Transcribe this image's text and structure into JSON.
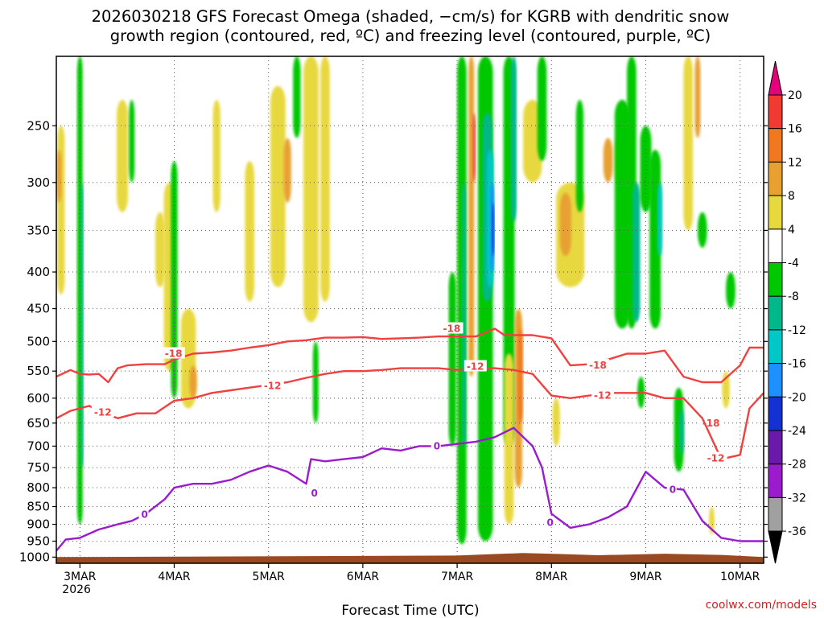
{
  "header": {
    "title_line1": "2026030218 GFS Forecast Omega (shaded, −cm/s) for KGRB with dendritic snow",
    "title_line2": "growth region (contoured, red, ºC) and freezing level (contoured, purple, ºC)"
  },
  "credit": "coolwx.com/models",
  "chart_data": {
    "type": "heatmap",
    "title": "2026030218 GFS Forecast Omega (shaded, −cm/s) for KGRB with dendritic snow growth region (contoured, red, ºC) and freezing level (contoured, purple, ºC)",
    "xlabel": "Forecast Time (UTC)",
    "ylabel": "",
    "x_ticks": [
      {
        "value": 0,
        "label": "3MAR",
        "sub": "2026"
      },
      {
        "value": 1,
        "label": "4MAR",
        "sub": ""
      },
      {
        "value": 2,
        "label": "5MAR",
        "sub": ""
      },
      {
        "value": 3,
        "label": "6MAR",
        "sub": ""
      },
      {
        "value": 4,
        "label": "7MAR",
        "sub": ""
      },
      {
        "value": 5,
        "label": "8MAR",
        "sub": ""
      },
      {
        "value": 6,
        "label": "9MAR",
        "sub": ""
      },
      {
        "value": 7,
        "label": "10MAR",
        "sub": ""
      }
    ],
    "xlim": [
      -0.25,
      7.25
    ],
    "y_ticks": [
      250,
      300,
      350,
      400,
      450,
      500,
      550,
      600,
      650,
      700,
      750,
      800,
      850,
      900,
      950,
      1000
    ],
    "y_scale": "log-pressure",
    "ylim": [
      200,
      1020
    ],
    "grid": true,
    "colorbar": {
      "ticks": [
        "20",
        "16",
        "12",
        "8",
        "4",
        "-4",
        "-8",
        "-12",
        "-16",
        "-20",
        "-24",
        "-28",
        "-32",
        "-36"
      ],
      "colors": {
        "gt20": "#e6007a",
        "16_20": "#f03c30",
        "12_16": "#f07820",
        "8_12": "#e8a030",
        "4_8": "#e8d840",
        "neutral": "#ffffff",
        "m4_m8": "#00c800",
        "m8_m12": "#00b88a",
        "m12_m16": "#00c8c8",
        "m16_m20": "#1e90ff",
        "m20_m24": "#1432d2",
        "m24_m28": "#6a1aa8",
        "m28_m32": "#9b1ccc",
        "m32_m36": "#a0a0a0",
        "lt36": "#000000"
      }
    },
    "contours": [
      {
        "label": "-18",
        "color": "#f04040",
        "x": [
          -0.25,
          -0.1,
          0.0,
          0.1,
          0.2,
          0.3,
          0.4,
          0.5,
          0.7,
          0.9,
          1.0,
          1.2,
          1.4,
          1.6,
          1.8,
          2.0,
          2.2,
          2.4,
          2.6,
          2.8,
          3.0,
          3.2,
          3.4,
          3.6,
          3.8,
          4.0,
          4.2,
          4.4,
          4.5,
          4.6,
          4.8,
          5.0,
          5.2,
          5.4,
          5.6,
          5.8,
          6.0,
          6.2,
          6.4,
          6.6,
          6.8,
          7.0,
          7.1,
          7.25
        ],
        "y": [
          560,
          548,
          555,
          556,
          555,
          570,
          545,
          540,
          538,
          538,
          530,
          520,
          518,
          515,
          510,
          506,
          500,
          498,
          494,
          494,
          493,
          496,
          495,
          494,
          492,
          492,
          492,
          480,
          490,
          490,
          490,
          495,
          540,
          538,
          530,
          520,
          520,
          515,
          560,
          570,
          570,
          540,
          510,
          510
        ],
        "label_at": [
          [
            0.9,
            520
          ],
          [
            3.85,
            480
          ],
          [
            5.4,
            540
          ],
          [
            6.6,
            650
          ]
        ]
      },
      {
        "label": "-12",
        "color": "#f04040",
        "x": [
          -0.25,
          -0.1,
          0.0,
          0.1,
          0.2,
          0.4,
          0.6,
          0.8,
          1.0,
          1.2,
          1.4,
          1.6,
          1.8,
          2.0,
          2.2,
          2.4,
          2.6,
          2.8,
          3.0,
          3.2,
          3.4,
          3.6,
          3.8,
          4.0,
          4.2,
          4.4,
          4.6,
          4.8,
          5.0,
          5.2,
          5.4,
          5.6,
          5.8,
          6.0,
          6.2,
          6.4,
          6.6,
          6.8,
          7.0,
          7.1,
          7.25
        ],
        "y": [
          640,
          625,
          620,
          615,
          625,
          640,
          630,
          630,
          605,
          600,
          590,
          585,
          580,
          575,
          570,
          562,
          555,
          550,
          550,
          548,
          545,
          545,
          545,
          548,
          545,
          545,
          548,
          555,
          595,
          600,
          595,
          590,
          590,
          590,
          600,
          600,
          640,
          730,
          720,
          620,
          590
        ],
        "label_at": [
          [
            0.15,
            628
          ],
          [
            1.95,
            577
          ],
          [
            4.1,
            542
          ],
          [
            5.45,
            595
          ],
          [
            6.65,
            728
          ]
        ]
      },
      {
        "label": "0",
        "color": "#9b1ccc",
        "x": [
          -0.25,
          -0.15,
          0.0,
          0.2,
          0.4,
          0.55,
          0.7,
          0.9,
          1.0,
          1.2,
          1.4,
          1.6,
          1.8,
          2.0,
          2.2,
          2.4,
          2.45,
          2.6,
          2.8,
          3.0,
          3.2,
          3.4,
          3.6,
          3.8,
          4.0,
          4.2,
          4.4,
          4.6,
          4.8,
          4.9,
          5.0,
          5.2,
          5.4,
          5.6,
          5.8,
          6.0,
          6.2,
          6.4,
          6.6,
          6.8,
          7.0,
          7.1,
          7.25
        ],
        "y": [
          980,
          945,
          940,
          915,
          900,
          890,
          870,
          830,
          800,
          790,
          790,
          780,
          760,
          745,
          760,
          790,
          730,
          735,
          730,
          725,
          705,
          710,
          700,
          700,
          695,
          690,
          680,
          660,
          700,
          750,
          870,
          910,
          900,
          880,
          850,
          760,
          800,
          805,
          890,
          940,
          950,
          950,
          950
        ],
        "label_at": [
          [
            0.65,
            872
          ],
          [
            2.45,
            815
          ],
          [
            3.75,
            700
          ],
          [
            4.95,
            895
          ],
          [
            6.25,
            805
          ]
        ]
      }
    ]
  }
}
